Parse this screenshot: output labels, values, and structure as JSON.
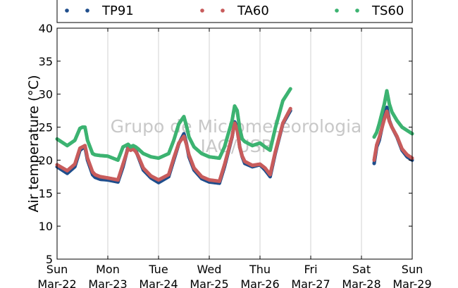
{
  "chart_data": {
    "type": "line",
    "ylabel": "Air temperature (°C)",
    "ylim": [
      5,
      40
    ],
    "yticks": [
      "5",
      "10",
      "15",
      "20",
      "25",
      "30",
      "35",
      "40"
    ],
    "x_range_days": [
      0,
      7
    ],
    "x_ticks": [
      {
        "day": "Sun",
        "date": "Mar-22"
      },
      {
        "day": "Mon",
        "date": "Mar-23"
      },
      {
        "day": "Tue",
        "date": "Mar-24"
      },
      {
        "day": "Wed",
        "date": "Mar-25"
      },
      {
        "day": "Thu",
        "date": "Mar-26"
      },
      {
        "day": "Fri",
        "date": "Mar-27"
      },
      {
        "day": "Sat",
        "date": "Mar-28"
      },
      {
        "day": "Sun",
        "date": "Mar-29"
      }
    ],
    "grid": "vertical",
    "legend_position": "top",
    "watermark": [
      "Grupo de Micrometeorologia",
      "IAG/USP"
    ],
    "series": [
      {
        "name": "TP91",
        "color": "#1f4e8c",
        "segments": [
          {
            "x": [
              0.0,
              0.2,
              0.35,
              0.45,
              0.5,
              0.55,
              0.6,
              0.7,
              0.75,
              0.85,
              1.0,
              1.2,
              1.3,
              1.4,
              1.45,
              1.5,
              1.55,
              1.6,
              1.7,
              1.85,
              2.0,
              2.2,
              2.3,
              2.4,
              2.5,
              2.55,
              2.6,
              2.7,
              2.85,
              3.0,
              3.2,
              3.3,
              3.45,
              3.5,
              3.55,
              3.6,
              3.65,
              3.7,
              3.85,
              4.0,
              4.1,
              4.2,
              4.3,
              4.45,
              4.6
            ],
            "y": [
              19.0,
              18.0,
              19.0,
              21.5,
              21.8,
              22.0,
              20.0,
              17.8,
              17.4,
              17.1,
              17.0,
              16.7,
              19.0,
              22.0,
              21.6,
              21.9,
              21.5,
              20.5,
              18.5,
              17.3,
              16.6,
              17.5,
              20.0,
              22.5,
              24.0,
              22.5,
              20.5,
              18.5,
              17.2,
              16.7,
              16.5,
              19.0,
              23.5,
              25.8,
              25.0,
              22.0,
              20.5,
              19.5,
              19.0,
              19.3,
              18.5,
              17.5,
              21.0,
              25.5,
              27.5
            ]
          },
          {
            "x": [
              6.25,
              6.3,
              6.35,
              6.45,
              6.5,
              6.55,
              6.6,
              6.7,
              6.8,
              6.9,
              7.0
            ],
            "y": [
              19.5,
              22.0,
              23.0,
              26.5,
              28.0,
              26.0,
              25.0,
              23.5,
              21.5,
              20.5,
              20.0
            ]
          }
        ]
      },
      {
        "name": "TA60",
        "color": "#c85c5c",
        "segments": [
          {
            "x": [
              0.0,
              0.2,
              0.35,
              0.45,
              0.5,
              0.55,
              0.6,
              0.7,
              0.75,
              0.85,
              1.0,
              1.2,
              1.3,
              1.4,
              1.45,
              1.5,
              1.55,
              1.6,
              1.7,
              1.85,
              2.0,
              2.2,
              2.3,
              2.4,
              2.5,
              2.55,
              2.6,
              2.7,
              2.85,
              3.0,
              3.2,
              3.3,
              3.45,
              3.5,
              3.55,
              3.6,
              3.65,
              3.7,
              3.85,
              4.0,
              4.1,
              4.2,
              4.3,
              4.45,
              4.6
            ],
            "y": [
              19.3,
              18.4,
              19.4,
              21.8,
              22.0,
              22.2,
              20.3,
              18.2,
              17.8,
              17.5,
              17.3,
              17.0,
              19.4,
              21.8,
              21.5,
              21.7,
              21.3,
              20.6,
              18.8,
              17.6,
              17.0,
              17.8,
              20.3,
              22.6,
              23.6,
              22.4,
              20.8,
              18.8,
              17.5,
              17.0,
              16.8,
              19.3,
              23.6,
              25.6,
              24.6,
              22.0,
              20.6,
              19.8,
              19.2,
              19.4,
              18.8,
              17.8,
              21.2,
              25.6,
              27.8
            ]
          },
          {
            "x": [
              6.25,
              6.3,
              6.35,
              6.45,
              6.5,
              6.55,
              6.6,
              6.7,
              6.8,
              6.9,
              7.0
            ],
            "y": [
              20.0,
              22.3,
              23.4,
              26.2,
              27.4,
              25.9,
              25.0,
              23.6,
              21.7,
              20.8,
              20.3
            ]
          }
        ]
      },
      {
        "name": "TS60",
        "color": "#3cb371",
        "segments": [
          {
            "x": [
              0.0,
              0.2,
              0.35,
              0.45,
              0.5,
              0.55,
              0.6,
              0.7,
              0.75,
              0.85,
              1.0,
              1.2,
              1.3,
              1.4,
              1.45,
              1.5,
              1.55,
              1.6,
              1.7,
              1.85,
              2.0,
              2.2,
              2.3,
              2.4,
              2.5,
              2.55,
              2.6,
              2.7,
              2.85,
              3.0,
              3.2,
              3.3,
              3.45,
              3.5,
              3.55,
              3.6,
              3.65,
              3.7,
              3.85,
              4.0,
              4.1,
              4.2,
              4.3,
              4.45,
              4.6
            ],
            "y": [
              23.2,
              22.2,
              23.0,
              24.8,
              25.0,
              25.0,
              23.0,
              21.0,
              20.8,
              20.7,
              20.6,
              20.0,
              22.0,
              22.4,
              22.0,
              22.2,
              22.0,
              21.7,
              21.0,
              20.5,
              20.3,
              21.0,
              23.0,
              25.5,
              26.6,
              25.2,
              23.5,
              22.0,
              21.0,
              20.5,
              20.3,
              22.0,
              26.0,
              28.2,
              27.5,
              24.8,
              23.2,
              22.8,
              22.2,
              22.6,
              22.0,
              21.5,
              24.8,
              29.0,
              30.8
            ]
          },
          {
            "x": [
              6.25,
              6.3,
              6.35,
              6.45,
              6.5,
              6.55,
              6.6,
              6.7,
              6.8,
              6.9,
              7.0
            ],
            "y": [
              23.5,
              24.2,
              25.5,
              28.5,
              30.5,
              28.5,
              27.3,
              26.0,
              25.0,
              24.5,
              24.0
            ]
          }
        ]
      }
    ]
  }
}
